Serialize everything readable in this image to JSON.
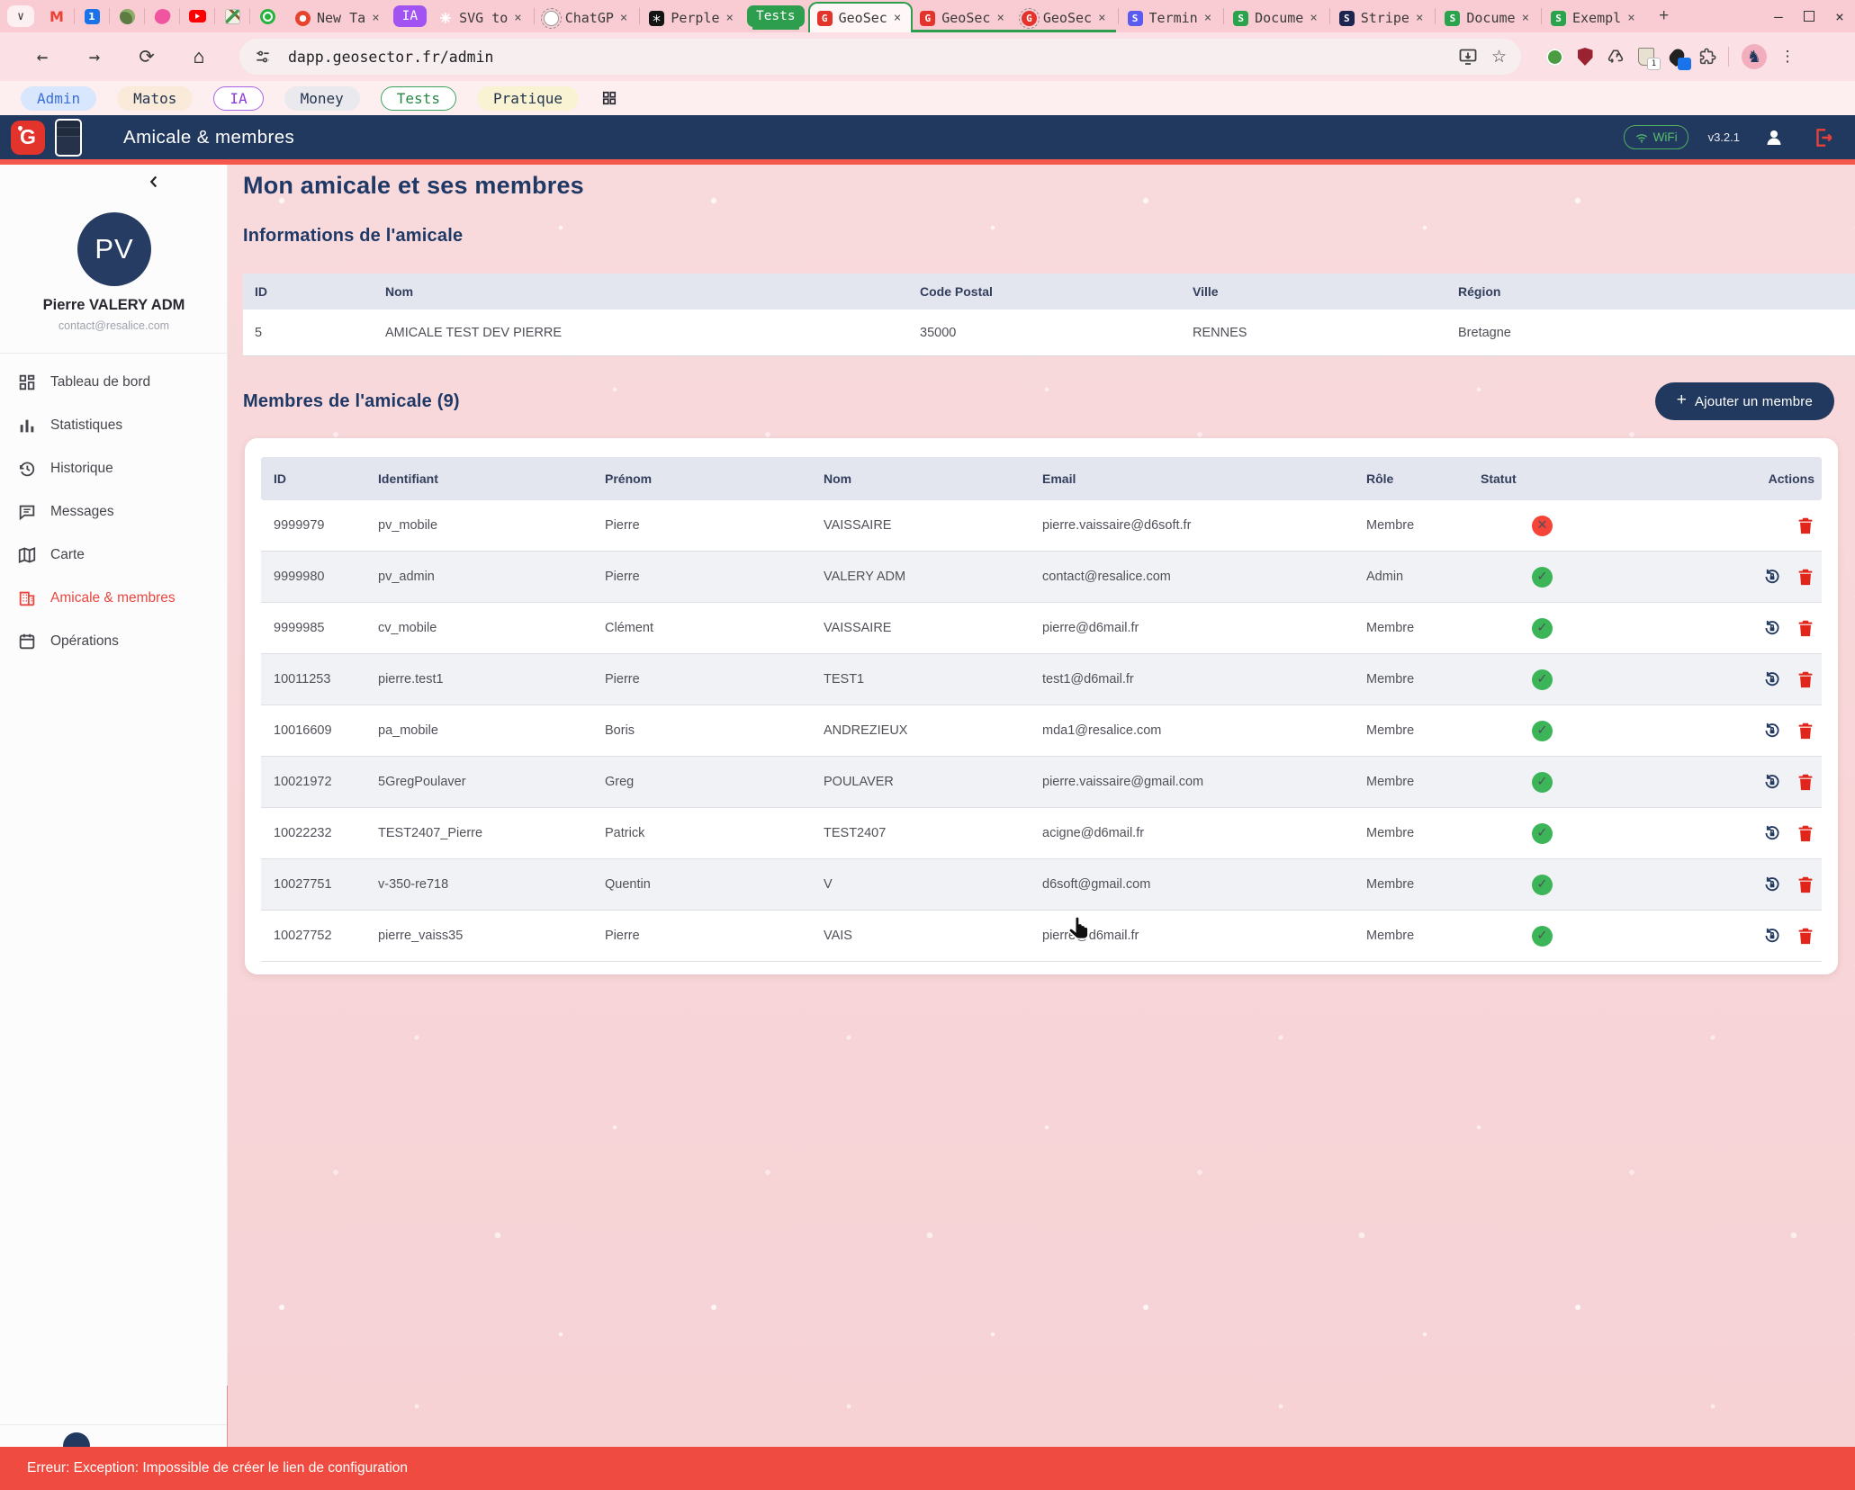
{
  "browser": {
    "url": "dapp.geosector.fr/admin",
    "pinned_tabs": [
      {
        "icon": "gmail"
      },
      {
        "icon": "calendar"
      },
      {
        "icon": "notes"
      },
      {
        "icon": "design"
      },
      {
        "icon": "youtube"
      },
      {
        "icon": "maps"
      },
      {
        "icon": "chat"
      }
    ],
    "tab_items": [
      {
        "kind": "tab",
        "title": "New Ta",
        "favicon": "newtab"
      },
      {
        "kind": "group",
        "label": "IA",
        "color": "#a254f2"
      },
      {
        "kind": "tab",
        "title": "SVG to",
        "favicon": "sparkle"
      },
      {
        "kind": "tab",
        "title": "ChatGP",
        "favicon": "chatgpt",
        "discarded": true
      },
      {
        "kind": "tab",
        "title": "Perple",
        "favicon": "perplexity"
      },
      {
        "kind": "group",
        "label": "Tests",
        "color": "#2c9e4e",
        "attached": true
      },
      {
        "kind": "tab",
        "title": "GeoSec",
        "favicon": "geosector",
        "active": true,
        "grouped": true
      },
      {
        "kind": "tab",
        "title": "GeoSec",
        "favicon": "geosector",
        "grouped": true
      },
      {
        "kind": "tab",
        "title": "GeoSec",
        "favicon": "geosector",
        "grouped": true,
        "discarded": true
      },
      {
        "kind": "tab",
        "title": "Termin",
        "favicon": "s-indigo"
      },
      {
        "kind": "tab",
        "title": "Docume",
        "favicon": "s-green"
      },
      {
        "kind": "tab",
        "title": "Stripe",
        "favicon": "s-navy"
      },
      {
        "kind": "tab",
        "title": "Docume",
        "favicon": "s-green"
      },
      {
        "kind": "tab",
        "title": "Exempl",
        "favicon": "s-green"
      }
    ],
    "extensions": [
      {
        "icon": "green-circle"
      },
      {
        "icon": "red-shield"
      },
      {
        "icon": "recycle"
      },
      {
        "icon": "tag",
        "badge": "1"
      },
      {
        "icon": "dropper",
        "badge": " "
      },
      {
        "icon": "puzzle"
      }
    ],
    "bookmarks": [
      {
        "label": "Admin",
        "bg": "#d8e7fd",
        "color": "#3a6fd8",
        "border": "transparent"
      },
      {
        "label": "Matos",
        "bg": "#f9ead9",
        "color": "#23354f",
        "border": "transparent"
      },
      {
        "label": "IA",
        "bg": "#ffffff",
        "color": "#8b3ddb",
        "border": "#a964e8"
      },
      {
        "label": "Money",
        "bg": "#e9e9ee",
        "color": "#23354f",
        "border": "transparent"
      },
      {
        "label": "Tests",
        "bg": "#ffffff",
        "color": "#258945",
        "border": "#3ba55f"
      },
      {
        "label": "Pratique",
        "bg": "#faf3d3",
        "color": "#23354f",
        "border": "transparent"
      }
    ]
  },
  "header": {
    "title": "Amicale & membres",
    "wifi_label": "WiFi",
    "version": "v3.2.1"
  },
  "sidebar": {
    "avatar_initials": "PV",
    "user_name": "Pierre VALERY ADM",
    "user_email": "contact@resalice.com",
    "items": [
      {
        "label": "Tableau de bord",
        "icon": "dashboard"
      },
      {
        "label": "Statistiques",
        "icon": "stats"
      },
      {
        "label": "Historique",
        "icon": "history"
      },
      {
        "label": "Messages",
        "icon": "messages"
      },
      {
        "label": "Carte",
        "icon": "map"
      },
      {
        "label": "Amicale & membres",
        "icon": "members",
        "active": true
      },
      {
        "label": "Opérations",
        "icon": "operations"
      }
    ]
  },
  "main": {
    "page_title": "Mon amicale et ses membres",
    "info_section_title": "Informations de l'amicale",
    "info_table": {
      "headers": [
        "ID",
        "Nom",
        "Code Postal",
        "Ville",
        "Région"
      ],
      "row": [
        "5",
        "AMICALE TEST DEV PIERRE",
        "35000",
        "RENNES",
        "Bretagne"
      ]
    },
    "members_section_title": "Membres de l'amicale (9)",
    "add_member_plus": "+",
    "add_member_label": "Ajouter un membre",
    "members_table": {
      "headers": [
        "ID",
        "Identifiant",
        "Prénom",
        "Nom",
        "Email",
        "Rôle",
        "Statut",
        "Actions"
      ],
      "rows": [
        {
          "id": "9999979",
          "identifiant": "pv_mobile",
          "prenom": "Pierre",
          "nom": "VAISSAIRE",
          "email": "pierre.vaissaire@d6soft.fr",
          "role": "Membre",
          "statut": "inactive",
          "actions": [
            "delete"
          ]
        },
        {
          "id": "9999980",
          "identifiant": "pv_admin",
          "prenom": "Pierre",
          "nom": "VALERY ADM",
          "email": "contact@resalice.com",
          "role": "Admin",
          "statut": "active",
          "actions": [
            "reset",
            "delete"
          ]
        },
        {
          "id": "9999985",
          "identifiant": "cv_mobile",
          "prenom": "Clément",
          "nom": "VAISSAIRE",
          "email": "pierre@d6mail.fr",
          "role": "Membre",
          "statut": "active",
          "actions": [
            "reset",
            "delete"
          ]
        },
        {
          "id": "10011253",
          "identifiant": "pierre.test1",
          "prenom": "Pierre",
          "nom": "TEST1",
          "email": "test1@d6mail.fr",
          "role": "Membre",
          "statut": "active",
          "actions": [
            "reset",
            "delete"
          ]
        },
        {
          "id": "10016609",
          "identifiant": "pa_mobile",
          "prenom": "Boris",
          "nom": "ANDREZIEUX",
          "email": "mda1@resalice.com",
          "role": "Membre",
          "statut": "active",
          "actions": [
            "reset",
            "delete"
          ]
        },
        {
          "id": "10021972",
          "identifiant": "5GregPoulaver",
          "prenom": "Greg",
          "nom": "POULAVER",
          "email": "pierre.vaissaire@gmail.com",
          "role": "Membre",
          "statut": "active",
          "actions": [
            "reset",
            "delete"
          ]
        },
        {
          "id": "10022232",
          "identifiant": "TEST2407_Pierre",
          "prenom": "Patrick",
          "nom": "TEST2407",
          "email": "acigne@d6mail.fr",
          "role": "Membre",
          "statut": "active",
          "actions": [
            "reset",
            "delete"
          ]
        },
        {
          "id": "10027751",
          "identifiant": "v-350-re718",
          "prenom": "Quentin",
          "nom": "V",
          "email": "d6soft@gmail.com",
          "role": "Membre",
          "statut": "active",
          "actions": [
            "reset",
            "delete"
          ]
        },
        {
          "id": "10027752",
          "identifiant": "pierre_vaiss35",
          "prenom": "Pierre",
          "nom": "VAIS",
          "email": "pierre@d6mail.fr",
          "role": "Membre",
          "statut": "active",
          "actions": [
            "reset",
            "delete"
          ]
        }
      ]
    }
  },
  "error_bar": {
    "message": "Erreur: Exception: Impossible de créer le lien de configuration"
  },
  "colors": {
    "app_navy": "#22395f",
    "accent_red": "#e8473f",
    "status_green": "#3cb558",
    "status_red": "#f44538",
    "error_bar": "#f04b40",
    "group_green": "#2c9e4e",
    "group_purple": "#a254f2",
    "header_line": "#f4584c"
  }
}
